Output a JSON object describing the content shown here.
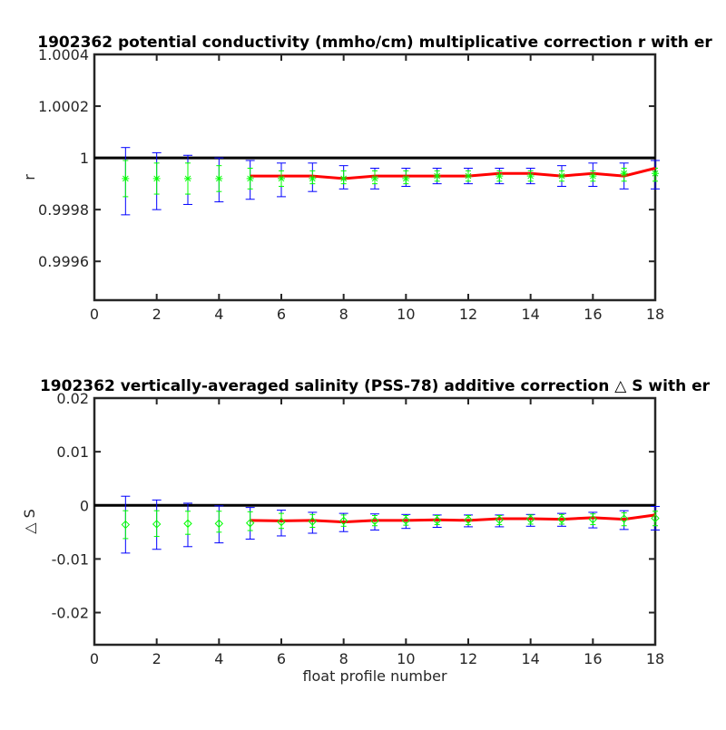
{
  "chart_data": [
    {
      "type": "scatter",
      "title": "1902362 potential conductivity (mmho/cm) multiplicative correction r with er",
      "xlabel": "",
      "ylabel": "r",
      "xlim": [
        0,
        18
      ],
      "ylim": [
        0.99945,
        1.0004
      ],
      "xticks": [
        0,
        2,
        4,
        6,
        8,
        10,
        12,
        14,
        16,
        18
      ],
      "xtick_labels": [
        "0",
        "2",
        "4",
        "6",
        "8",
        "10",
        "12",
        "14",
        "16",
        "18"
      ],
      "yticks": [
        0.9996,
        0.9998,
        1.0,
        1.0002,
        1.0004
      ],
      "ytick_labels": [
        "0.9996",
        "0.9998",
        "1",
        "1.0002",
        "1.0004"
      ],
      "reference_line": 1.0,
      "marker": "asterisk",
      "grid": false,
      "series": [
        {
          "role": "error-bars",
          "color": "#0000ff",
          "x": [
            1,
            2,
            3,
            4,
            5,
            6,
            7,
            8,
            9,
            10,
            11,
            12,
            13,
            14,
            15,
            16,
            17,
            18
          ],
          "low": [
            0.99978,
            0.9998,
            0.99982,
            0.99983,
            0.99984,
            0.99985,
            0.99987,
            0.99988,
            0.99988,
            0.99989,
            0.9999,
            0.9999,
            0.9999,
            0.9999,
            0.99989,
            0.99989,
            0.99988,
            0.99988
          ],
          "high": [
            1.00004,
            1.00002,
            1.00001,
            1.0,
            0.99999,
            0.99998,
            0.99998,
            0.99997,
            0.99996,
            0.99996,
            0.99996,
            0.99996,
            0.99996,
            0.99996,
            0.99997,
            0.99998,
            0.99998,
            0.99999
          ]
        },
        {
          "role": "inner-error-bars",
          "color": "#00ff00",
          "x": [
            1,
            2,
            3,
            4,
            5,
            6,
            7,
            8,
            9,
            10,
            11,
            12,
            13,
            14,
            15,
            16,
            17,
            18
          ],
          "low": [
            0.99985,
            0.99986,
            0.99986,
            0.99987,
            0.99988,
            0.99989,
            0.9999,
            0.9999,
            0.9999,
            0.9999,
            0.99991,
            0.99991,
            0.99991,
            0.99991,
            0.99991,
            0.99991,
            0.99991,
            0.99991
          ],
          "high": [
            0.99999,
            0.99998,
            0.99998,
            0.99997,
            0.99996,
            0.99995,
            0.99995,
            0.99995,
            0.99995,
            0.99995,
            0.99995,
            0.99995,
            0.99995,
            0.99995,
            0.99995,
            0.99995,
            0.99996,
            0.99996
          ]
        },
        {
          "role": "markers",
          "color": "#00ff00",
          "x": [
            1,
            2,
            3,
            4,
            5,
            6,
            7,
            8,
            9,
            10,
            11,
            12,
            13,
            14,
            15,
            16,
            17,
            18
          ],
          "y": [
            0.99992,
            0.99992,
            0.99992,
            0.99992,
            0.99992,
            0.99992,
            0.99992,
            0.99992,
            0.99992,
            0.99992,
            0.99993,
            0.99993,
            0.99993,
            0.99993,
            0.99993,
            0.99993,
            0.99994,
            0.99994
          ]
        },
        {
          "role": "line",
          "color": "#ff0000",
          "x": [
            5,
            6,
            7,
            8,
            9,
            10,
            11,
            12,
            13,
            14,
            15,
            16,
            17,
            18
          ],
          "y": [
            0.99993,
            0.99993,
            0.99993,
            0.99992,
            0.99993,
            0.99993,
            0.99993,
            0.99993,
            0.99994,
            0.99994,
            0.99993,
            0.99994,
            0.99993,
            0.99996
          ]
        }
      ]
    },
    {
      "type": "scatter",
      "title": "1902362 vertically-averaged salinity (PSS-78) additive correction △ S with er",
      "xlabel": "float profile number",
      "ylabel": "△ S",
      "xlim": [
        0,
        18
      ],
      "ylim": [
        -0.026,
        0.02
      ],
      "xticks": [
        0,
        2,
        4,
        6,
        8,
        10,
        12,
        14,
        16,
        18
      ],
      "xtick_labels": [
        "0",
        "2",
        "4",
        "6",
        "8",
        "10",
        "12",
        "14",
        "16",
        "18"
      ],
      "yticks": [
        -0.02,
        -0.01,
        0,
        0.01,
        0.02
      ],
      "ytick_labels": [
        "-0.02",
        "-0.01",
        "0",
        "0.01",
        "0.02"
      ],
      "reference_line": 0,
      "marker": "diamond",
      "grid": false,
      "series": [
        {
          "role": "error-bars",
          "color": "#0000ff",
          "x": [
            1,
            2,
            3,
            4,
            5,
            6,
            7,
            8,
            9,
            10,
            11,
            12,
            13,
            14,
            15,
            16,
            17,
            18
          ],
          "low": [
            -0.0089,
            -0.0082,
            -0.0077,
            -0.007,
            -0.0063,
            -0.0057,
            -0.0052,
            -0.0049,
            -0.0046,
            -0.0043,
            -0.0041,
            -0.004,
            -0.004,
            -0.0039,
            -0.0039,
            -0.0042,
            -0.0045,
            -0.0046
          ],
          "high": [
            0.0017,
            0.001,
            0.0004,
            -0.0001,
            -0.0004,
            -0.0009,
            -0.0013,
            -0.0015,
            -0.0016,
            -0.0017,
            -0.0018,
            -0.0018,
            -0.0018,
            -0.0017,
            -0.0015,
            -0.0013,
            -0.001,
            -0.0002
          ]
        },
        {
          "role": "inner-error-bars",
          "color": "#00ff00",
          "x": [
            1,
            2,
            3,
            4,
            5,
            6,
            7,
            8,
            9,
            10,
            11,
            12,
            13,
            14,
            15,
            16,
            17,
            18
          ],
          "low": [
            -0.0062,
            -0.0058,
            -0.0054,
            -0.005,
            -0.0047,
            -0.0043,
            -0.0041,
            -0.0039,
            -0.0038,
            -0.0037,
            -0.0036,
            -0.0036,
            -0.0036,
            -0.0035,
            -0.0035,
            -0.0036,
            -0.0038,
            -0.0038
          ],
          "high": [
            -0.001,
            -0.001,
            -0.0011,
            -0.0011,
            -0.0012,
            -0.0015,
            -0.0017,
            -0.0018,
            -0.0019,
            -0.0019,
            -0.0019,
            -0.0019,
            -0.0019,
            -0.0018,
            -0.0017,
            -0.0016,
            -0.0014,
            -0.0011
          ]
        },
        {
          "role": "markers",
          "color": "#00ff00",
          "x": [
            1,
            2,
            3,
            4,
            5,
            6,
            7,
            8,
            9,
            10,
            11,
            12,
            13,
            14,
            15,
            16,
            17,
            18
          ],
          "y": [
            -0.0036,
            -0.0035,
            -0.0034,
            -0.0034,
            -0.0033,
            -0.0031,
            -0.003,
            -0.0029,
            -0.0029,
            -0.0028,
            -0.0028,
            -0.0027,
            -0.0027,
            -0.0026,
            -0.0026,
            -0.0026,
            -0.0025,
            -0.0024
          ]
        },
        {
          "role": "line",
          "color": "#ff0000",
          "x": [
            5,
            6,
            7,
            8,
            9,
            10,
            11,
            12,
            13,
            14,
            15,
            16,
            17,
            18
          ],
          "y": [
            -0.0028,
            -0.0029,
            -0.0028,
            -0.0031,
            -0.0028,
            -0.0028,
            -0.0027,
            -0.0028,
            -0.0025,
            -0.0025,
            -0.0026,
            -0.0023,
            -0.0026,
            -0.0018
          ]
        }
      ]
    }
  ]
}
